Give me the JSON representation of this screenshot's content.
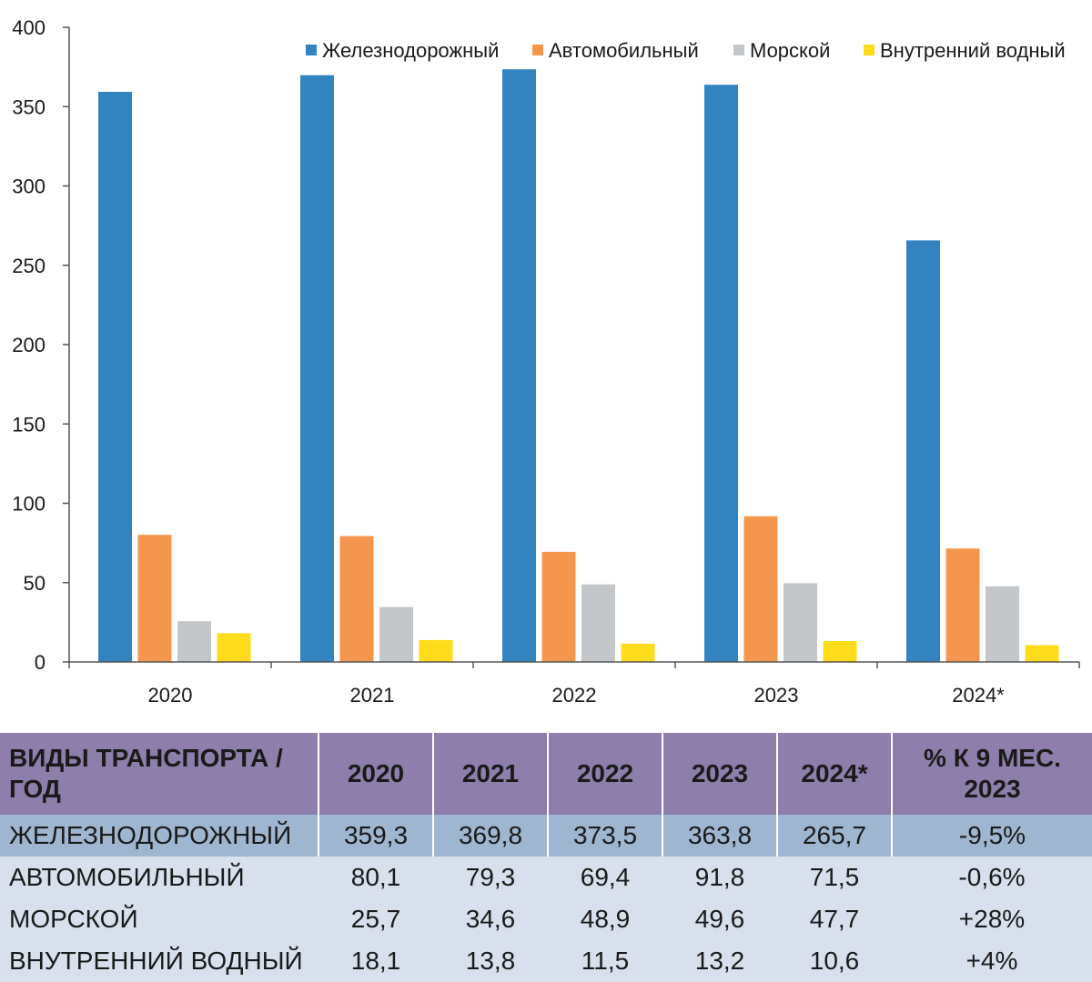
{
  "chart_data": {
    "type": "bar",
    "categories": [
      "2020",
      "2021",
      "2022",
      "2023",
      "2024*"
    ],
    "series": [
      {
        "name": "Железнодорожный",
        "color": "#3383c1",
        "values": [
          359.3,
          369.8,
          373.5,
          363.8,
          265.7
        ]
      },
      {
        "name": "Автомобильный",
        "color": "#f5964f",
        "values": [
          80.1,
          79.3,
          69.4,
          91.8,
          71.5
        ]
      },
      {
        "name": "Морской",
        "color": "#c4c7ca",
        "values": [
          25.7,
          34.6,
          48.9,
          49.6,
          47.7
        ]
      },
      {
        "name": "Внутренний водный",
        "color": "#fedc1c",
        "values": [
          18.1,
          13.8,
          11.5,
          13.2,
          10.6
        ]
      }
    ],
    "ylim": [
      0,
      400
    ],
    "yticks": [
      0,
      50,
      100,
      150,
      200,
      250,
      300,
      350,
      400
    ],
    "grid": false,
    "legend": "top-right"
  },
  "table": {
    "header_label": "ВИДЫ ТРАНСПОРТА / ГОД",
    "years": [
      "2020",
      "2021",
      "2022",
      "2023",
      "2024*"
    ],
    "change_header": "% К 9 МЕС. 2023",
    "rows": [
      {
        "label": "ЖЕЛЕЗНОДОРОЖНЫЙ",
        "values": [
          "359,3",
          "369,8",
          "373,5",
          "363,8",
          "265,7"
        ],
        "change": "-9,5%"
      },
      {
        "label": "АВТОМОБИЛЬНЫЙ",
        "values": [
          "80,1",
          "79,3",
          "69,4",
          "91,8",
          "71,5"
        ],
        "change": "-0,6%"
      },
      {
        "label": "МОРСКОЙ",
        "values": [
          "25,7",
          "34,6",
          "48,9",
          "49,6",
          "47,7"
        ],
        "change": "+28%"
      },
      {
        "label": "ВНУТРЕННИЙ ВОДНЫЙ",
        "values": [
          "18,1",
          "13,8",
          "11,5",
          "13,2",
          "10,6"
        ],
        "change": "+4%"
      }
    ]
  }
}
